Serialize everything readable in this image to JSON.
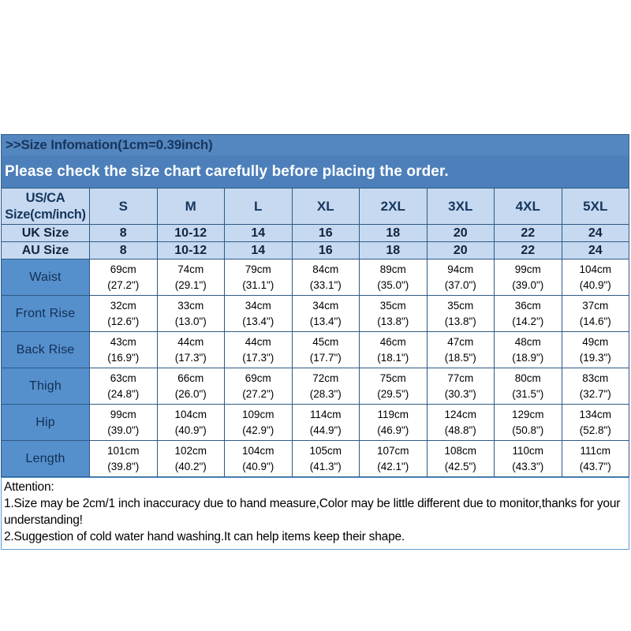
{
  "title_bar": {
    "text": ">>Size Infomation(1cm=0.39inch)"
  },
  "banner": {
    "text": "Please check the size chart carefully before placing the order."
  },
  "table": {
    "corner_header": "US/CA Size(cm/inch)",
    "size_columns": [
      "S",
      "M",
      "L",
      "XL",
      "2XL",
      "3XL",
      "4XL",
      "5XL"
    ],
    "size_rows": [
      {
        "label": "UK Size",
        "values": [
          "8",
          "10-12",
          "14",
          "16",
          "18",
          "20",
          "22",
          "24"
        ]
      },
      {
        "label": "AU Size",
        "values": [
          "8",
          "10-12",
          "14",
          "16",
          "18",
          "20",
          "22",
          "24"
        ]
      }
    ],
    "measurement_rows": [
      {
        "label": "Waist",
        "cells": [
          {
            "cm": "69cm",
            "inch": "(27.2\")"
          },
          {
            "cm": "74cm",
            "inch": "(29.1\")"
          },
          {
            "cm": "79cm",
            "inch": "(31.1\")"
          },
          {
            "cm": "84cm",
            "inch": "(33.1\")"
          },
          {
            "cm": "89cm",
            "inch": "(35.0\")"
          },
          {
            "cm": "94cm",
            "inch": "(37.0\")"
          },
          {
            "cm": "99cm",
            "inch": "(39.0\")"
          },
          {
            "cm": "104cm",
            "inch": "(40.9\")"
          }
        ]
      },
      {
        "label": "Front Rise",
        "cells": [
          {
            "cm": "32cm",
            "inch": "(12.6\")"
          },
          {
            "cm": "33cm",
            "inch": "(13.0\")"
          },
          {
            "cm": "34cm",
            "inch": "(13.4\")"
          },
          {
            "cm": "34cm",
            "inch": "(13.4\")"
          },
          {
            "cm": "35cm",
            "inch": "(13.8\")"
          },
          {
            "cm": "35cm",
            "inch": "(13.8\")"
          },
          {
            "cm": "36cm",
            "inch": "(14.2\")"
          },
          {
            "cm": "37cm",
            "inch": "(14.6\")"
          }
        ]
      },
      {
        "label": "Back Rise",
        "cells": [
          {
            "cm": "43cm",
            "inch": "(16.9\")"
          },
          {
            "cm": "44cm",
            "inch": "(17.3\")"
          },
          {
            "cm": "44cm",
            "inch": "(17.3\")"
          },
          {
            "cm": "45cm",
            "inch": "(17.7\")"
          },
          {
            "cm": "46cm",
            "inch": "(18.1\")"
          },
          {
            "cm": "47cm",
            "inch": "(18.5\")"
          },
          {
            "cm": "48cm",
            "inch": "(18.9\")"
          },
          {
            "cm": "49cm",
            "inch": "(19.3\")"
          }
        ]
      },
      {
        "label": "Thigh",
        "cells": [
          {
            "cm": "63cm",
            "inch": "(24.8\")"
          },
          {
            "cm": "66cm",
            "inch": "(26.0\")"
          },
          {
            "cm": "69cm",
            "inch": "(27.2\")"
          },
          {
            "cm": "72cm",
            "inch": "(28.3\")"
          },
          {
            "cm": "75cm",
            "inch": "(29.5\")"
          },
          {
            "cm": "77cm",
            "inch": "(30.3\")"
          },
          {
            "cm": "80cm",
            "inch": "(31.5\")"
          },
          {
            "cm": "83cm",
            "inch": "(32.7\")"
          }
        ]
      },
      {
        "label": "Hip",
        "cells": [
          {
            "cm": "99cm",
            "inch": "(39.0\")"
          },
          {
            "cm": "104cm",
            "inch": "(40.9\")"
          },
          {
            "cm": "109cm",
            "inch": "(42.9\")"
          },
          {
            "cm": "114cm",
            "inch": "(44.9\")"
          },
          {
            "cm": "119cm",
            "inch": "(46.9\")"
          },
          {
            "cm": "124cm",
            "inch": "(48.8\")"
          },
          {
            "cm": "129cm",
            "inch": "(50.8\")"
          },
          {
            "cm": "134cm",
            "inch": "(52.8\")"
          }
        ]
      },
      {
        "label": "Length",
        "cells": [
          {
            "cm": "101cm",
            "inch": "(39.8\")"
          },
          {
            "cm": "102cm",
            "inch": "(40.2\")"
          },
          {
            "cm": "104cm",
            "inch": "(40.9\")"
          },
          {
            "cm": "105cm",
            "inch": "(41.3\")"
          },
          {
            "cm": "107cm",
            "inch": "(42.1\")"
          },
          {
            "cm": "108cm",
            "inch": "(42.5\")"
          },
          {
            "cm": "110cm",
            "inch": "(43.3\")"
          },
          {
            "cm": "111cm",
            "inch": "(43.7\")"
          }
        ]
      }
    ]
  },
  "attention": {
    "heading": "Attention:",
    "lines": [
      "1.Size may be 2cm/1 inch inaccuracy due to hand measure,Color may be little different due to monitor,thanks for your understanding!",
      "2.Suggestion of cold water hand washing.It can help items keep their shape."
    ]
  },
  "colors": {
    "banner_blue": "#4d80ba",
    "title_bar_blue": "#5486bf",
    "header_light_blue": "#c6d9f0",
    "label_cell_blue": "#5590cd",
    "table_border_blue": "#2d5986",
    "title_text_navy": "#17365d",
    "banner_text": "#ffffff",
    "data_text": "#000000"
  }
}
